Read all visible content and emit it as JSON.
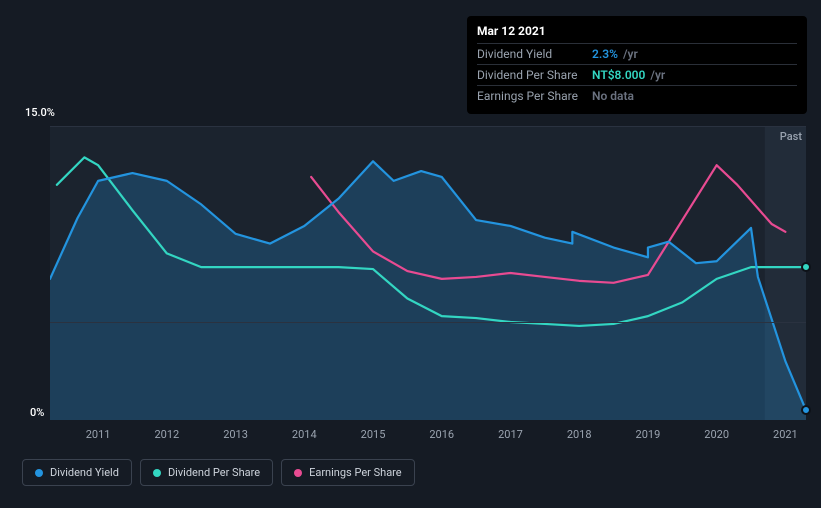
{
  "chart": {
    "type": "line",
    "background_color": "#151b24",
    "plot_background": "#1b232e",
    "plot_background_lighter": "#222c39",
    "grid_color": "#2a3240",
    "axis_text_color": "#9aa3af",
    "yaxis": {
      "max_label": "15.0%",
      "min_label": "0%",
      "ylim": [
        0,
        15
      ],
      "tick_positions": [
        0,
        5,
        15
      ]
    },
    "xaxis": {
      "labels": [
        "2011",
        "2012",
        "2013",
        "2014",
        "2015",
        "2016",
        "2017",
        "2018",
        "2019",
        "2020",
        "2021"
      ],
      "xlim": [
        2010.3,
        2021.3
      ]
    },
    "past_label": "Past",
    "past_start_year": 2020.7,
    "series": {
      "dividend_yield": {
        "label": "Dividend Yield",
        "color": "#2394df",
        "fill_opacity": 0.25,
        "stroke_width": 2.2,
        "points": [
          [
            2010.3,
            7.2
          ],
          [
            2010.7,
            10.3
          ],
          [
            2011.0,
            12.2
          ],
          [
            2011.5,
            12.6
          ],
          [
            2012.0,
            12.2
          ],
          [
            2012.5,
            11.0
          ],
          [
            2013.0,
            9.5
          ],
          [
            2013.5,
            9.0
          ],
          [
            2014.0,
            9.9
          ],
          [
            2014.5,
            11.3
          ],
          [
            2015.0,
            13.2
          ],
          [
            2015.3,
            12.2
          ],
          [
            2015.7,
            12.7
          ],
          [
            2016.0,
            12.4
          ],
          [
            2016.5,
            10.2
          ],
          [
            2017.0,
            9.9
          ],
          [
            2017.5,
            9.3
          ],
          [
            2017.9,
            9.0
          ],
          [
            2017.9,
            9.6
          ],
          [
            2018.5,
            8.8
          ],
          [
            2019.0,
            8.3
          ],
          [
            2019.0,
            8.8
          ],
          [
            2019.3,
            9.1
          ],
          [
            2019.7,
            8.0
          ],
          [
            2020.0,
            8.1
          ],
          [
            2020.5,
            9.8
          ],
          [
            2020.6,
            7.3
          ],
          [
            2021.0,
            3.0
          ],
          [
            2021.3,
            0.5
          ]
        ]
      },
      "dividend_per_share": {
        "label": "Dividend Per Share",
        "color": "#33d6c2",
        "stroke_width": 2.2,
        "points": [
          [
            2010.4,
            12.0
          ],
          [
            2010.8,
            13.4
          ],
          [
            2011.0,
            13.0
          ],
          [
            2011.5,
            10.7
          ],
          [
            2012.0,
            8.5
          ],
          [
            2012.5,
            7.8
          ],
          [
            2013.0,
            7.8
          ],
          [
            2013.5,
            7.8
          ],
          [
            2014.0,
            7.8
          ],
          [
            2014.5,
            7.8
          ],
          [
            2015.0,
            7.7
          ],
          [
            2015.5,
            6.2
          ],
          [
            2016.0,
            5.3
          ],
          [
            2016.5,
            5.2
          ],
          [
            2017.0,
            5.0
          ],
          [
            2017.5,
            4.9
          ],
          [
            2018.0,
            4.8
          ],
          [
            2018.5,
            4.9
          ],
          [
            2019.0,
            5.3
          ],
          [
            2019.5,
            6.0
          ],
          [
            2020.0,
            7.2
          ],
          [
            2020.5,
            7.8
          ],
          [
            2021.0,
            7.8
          ],
          [
            2021.3,
            7.8
          ]
        ]
      },
      "earnings_per_share": {
        "label": "Earnings Per Share",
        "color": "#e84b92",
        "stroke_width": 2.2,
        "points": [
          [
            2014.1,
            12.4
          ],
          [
            2014.5,
            10.6
          ],
          [
            2015.0,
            8.6
          ],
          [
            2015.5,
            7.6
          ],
          [
            2016.0,
            7.2
          ],
          [
            2016.5,
            7.3
          ],
          [
            2017.0,
            7.5
          ],
          [
            2017.5,
            7.3
          ],
          [
            2018.0,
            7.1
          ],
          [
            2018.5,
            7.0
          ],
          [
            2019.0,
            7.4
          ],
          [
            2019.5,
            10.2
          ],
          [
            2020.0,
            13.0
          ],
          [
            2020.3,
            12.0
          ],
          [
            2020.8,
            10.0
          ],
          [
            2021.0,
            9.6
          ]
        ]
      }
    },
    "markers": [
      {
        "series": "dividend_per_share",
        "x": 2021.3,
        "y": 7.8
      },
      {
        "series": "dividend_yield",
        "x": 2021.3,
        "y": 0.5
      }
    ]
  },
  "tooltip": {
    "date": "Mar 12 2021",
    "rows": [
      {
        "label": "Dividend Yield",
        "value": "2.3%",
        "unit": "/yr",
        "color": "#2394df"
      },
      {
        "label": "Dividend Per Share",
        "value": "NT$8.000",
        "unit": "/yr",
        "color": "#33d6c2"
      },
      {
        "label": "Earnings Per Share",
        "value": "No data",
        "unit": "",
        "color": "#6b7280"
      }
    ]
  },
  "legend": [
    {
      "label": "Dividend Yield",
      "color": "#2394df"
    },
    {
      "label": "Dividend Per Share",
      "color": "#33d6c2"
    },
    {
      "label": "Earnings Per Share",
      "color": "#e84b92"
    }
  ]
}
